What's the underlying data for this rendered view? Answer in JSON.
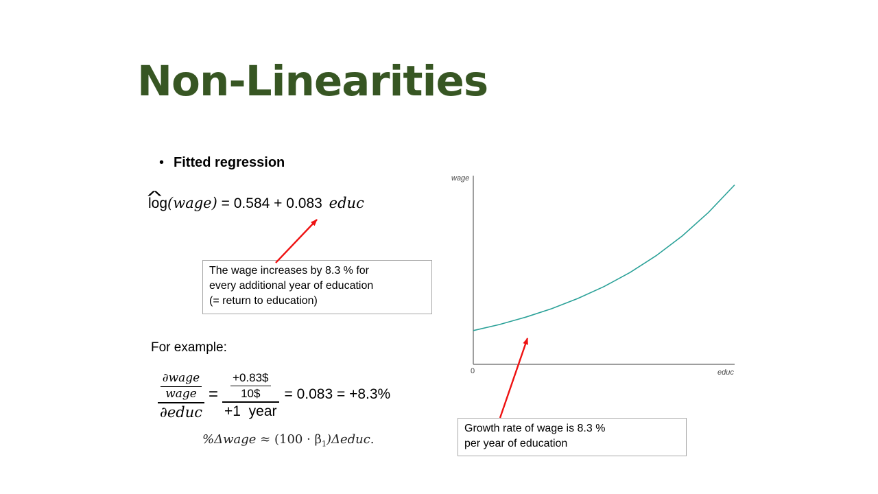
{
  "title": "Non-Linearities",
  "bullet": {
    "symbol": "•",
    "text": "Fitted regression"
  },
  "equation": {
    "log": "log",
    "wage_arg": "(wage)",
    "equals": "=",
    "intercept": "0.584",
    "plus": "+",
    "slope": "0.083",
    "regressor": "educ"
  },
  "annotation1": {
    "lines": [
      "The wage increases by 8.3 % for",
      "every additional year of education",
      "(= return to education)"
    ]
  },
  "example_label": "For example:",
  "derivation": {
    "partial_wage": "∂wage",
    "wage": "wage",
    "partial_educ": "∂educ",
    "equals": "=",
    "change_wage": "+0.83$",
    "base_wage": "10$",
    "change_educ": "+1  year",
    "result": "= 0.083 = +8.3%"
  },
  "formula2": {
    "lhs": "%Δwage",
    "approx": "≈",
    "factor": "(100 · β",
    "sub": "1",
    "rest": ")Δeduc."
  },
  "annotation2": {
    "lines": [
      "Growth rate of wage is 8.3 %",
      "per year of education"
    ]
  },
  "chart_data": {
    "type": "line",
    "title": "",
    "xlabel": "educ",
    "ylabel": "wage",
    "x_tick_labels": [
      "0"
    ],
    "series": [
      {
        "x": [
          0,
          2,
          4,
          6,
          8,
          10,
          12,
          14,
          16,
          18,
          20
        ],
        "y": [
          1.79,
          2.11,
          2.5,
          2.95,
          3.49,
          4.12,
          4.87,
          5.76,
          6.81,
          8.05,
          9.51
        ]
      }
    ],
    "xlim": [
      0,
      20
    ],
    "ylim": [
      0,
      10
    ],
    "colors": {
      "line": "#2aa198",
      "axis": "#7f7f7f",
      "arrow": "#ee1111"
    }
  }
}
